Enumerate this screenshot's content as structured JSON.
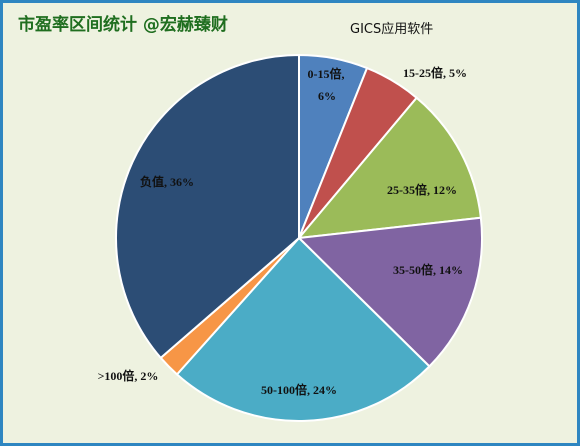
{
  "header": {
    "title": "市盈率区间统计 @宏赫臻财"
  },
  "chart_data": {
    "type": "pie",
    "title": "GICS应用软件",
    "start_angle_deg": 0,
    "direction": "clockwise",
    "slices": [
      {
        "label": "0-15倍",
        "value": 6,
        "text": "0-15倍,",
        "text2": "6%",
        "color": "#4f81bd"
      },
      {
        "label": "15-25倍",
        "value": 5,
        "text": "15-25倍, 5%",
        "color": "#c0504d"
      },
      {
        "label": "25-35倍",
        "value": 12,
        "text": "25-35倍, 12%",
        "color": "#9bbb59"
      },
      {
        "label": "35-50倍",
        "value": 14,
        "text": "35-50倍, 14%",
        "color": "#8064a2"
      },
      {
        "label": "50-100倍",
        "value": 24,
        "text": "50-100倍, 24%",
        "color": "#4bacc6"
      },
      {
        "label": ">100倍",
        "value": 2,
        "text": ">100倍, 2%",
        "color": "#f79646"
      },
      {
        "label": "负值",
        "value": 36,
        "text": "负值, 36%",
        "color": "#2c4d75"
      }
    ]
  }
}
